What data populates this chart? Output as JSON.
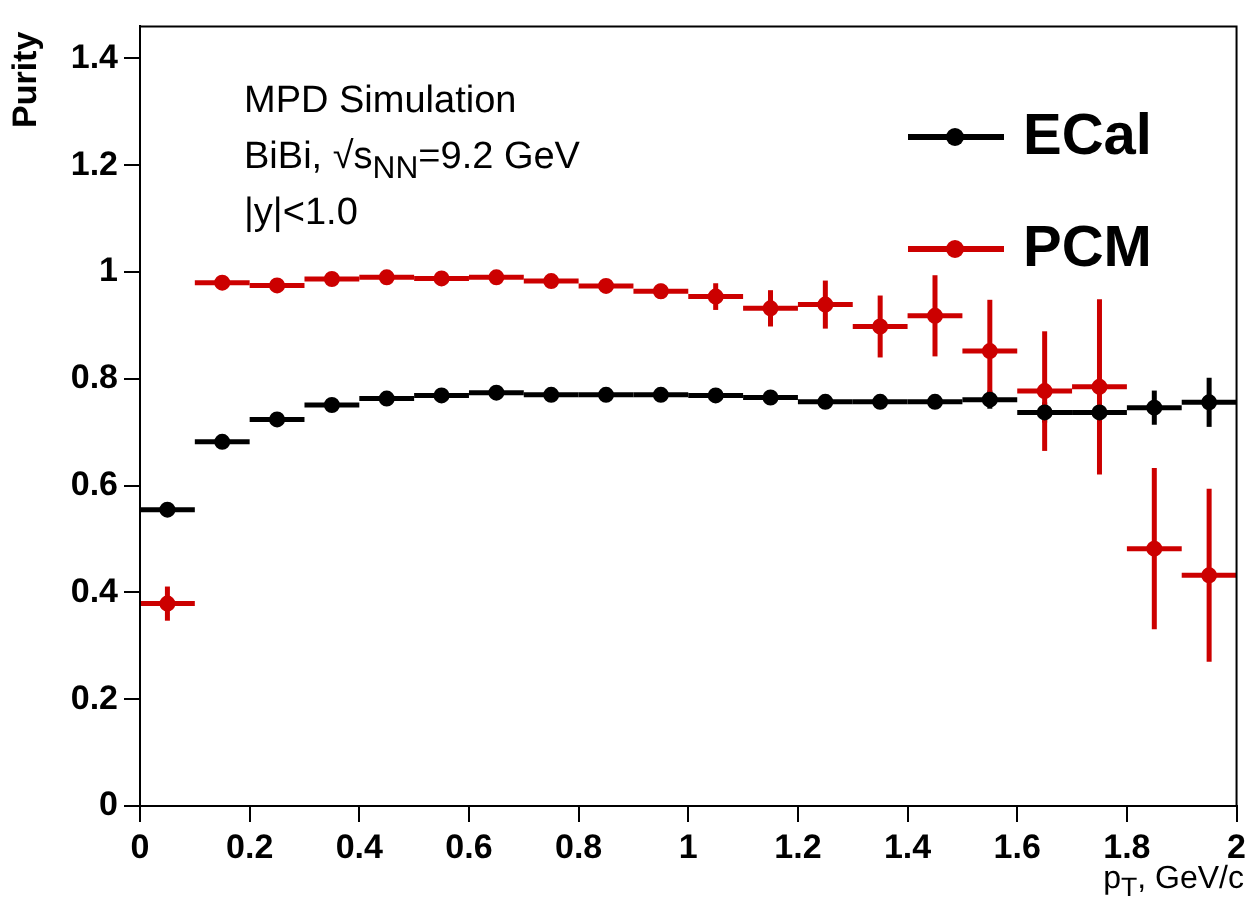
{
  "chart_data": {
    "type": "scatter",
    "xlabel": "p$_{T}$, GeV/c",
    "ylabel": "Purity",
    "annotations": [
      "MPD Simulation",
      "BiBi,  √s$_{NN}$=9.2 GeV",
      "|y|<1.0"
    ],
    "xlim": [
      0,
      2
    ],
    "ylim": [
      0,
      1.46
    ],
    "xticks": [
      0,
      0.2,
      0.4,
      0.6,
      0.8,
      1,
      1.2,
      1.4,
      1.6,
      1.8,
      2
    ],
    "yticks": [
      0,
      0.2,
      0.4,
      0.6,
      0.8,
      1,
      1.2,
      1.4
    ],
    "grid": false,
    "legend": "top right",
    "marker": "circle",
    "x": [
      0.05,
      0.15,
      0.25,
      0.35,
      0.45,
      0.55,
      0.65,
      0.75,
      0.85,
      0.95,
      1.05,
      1.15,
      1.25,
      1.35,
      1.45,
      1.55,
      1.65,
      1.75,
      1.85,
      1.95
    ],
    "series": [
      {
        "name": "ECal",
        "color": "#000000",
        "values": [
          0.555,
          0.682,
          0.724,
          0.751,
          0.763,
          0.769,
          0.774,
          0.77,
          0.77,
          0.77,
          0.769,
          0.765,
          0.757,
          0.757,
          0.757,
          0.761,
          0.737,
          0.737,
          0.746,
          0.756
        ],
        "errors": [
          null,
          null,
          null,
          null,
          null,
          null,
          null,
          null,
          null,
          null,
          null,
          null,
          null,
          null,
          null,
          0.017,
          0.019,
          0.019,
          0.032,
          0.046
        ],
        "xerrors": [
          0.05,
          0.05,
          0.05,
          0.05,
          0.05,
          0.05,
          0.05,
          0.05,
          0.05,
          0.05,
          0.05,
          0.05,
          0.05,
          0.05,
          0.05,
          0.05,
          0.05,
          0.05,
          0.05,
          0.05
        ]
      },
      {
        "name": "PCM",
        "color": "#cc0000",
        "values": [
          0.379,
          0.98,
          0.975,
          0.987,
          0.99,
          0.988,
          0.99,
          0.983,
          0.974,
          0.964,
          0.954,
          0.932,
          0.939,
          0.898,
          0.918,
          0.852,
          0.777,
          0.785,
          0.482,
          0.432
        ],
        "errors": [
          0.032,
          null,
          null,
          null,
          null,
          null,
          null,
          null,
          0.01,
          0.014,
          0.025,
          0.034,
          0.045,
          0.058,
          0.076,
          0.096,
          0.112,
          0.164,
          0.151,
          0.162
        ],
        "xerrors": [
          0.05,
          0.05,
          0.05,
          0.05,
          0.05,
          0.05,
          0.05,
          0.05,
          0.05,
          0.05,
          0.05,
          0.05,
          0.05,
          0.05,
          0.05,
          0.05,
          0.05,
          0.05,
          0.05,
          0.05
        ]
      }
    ]
  }
}
